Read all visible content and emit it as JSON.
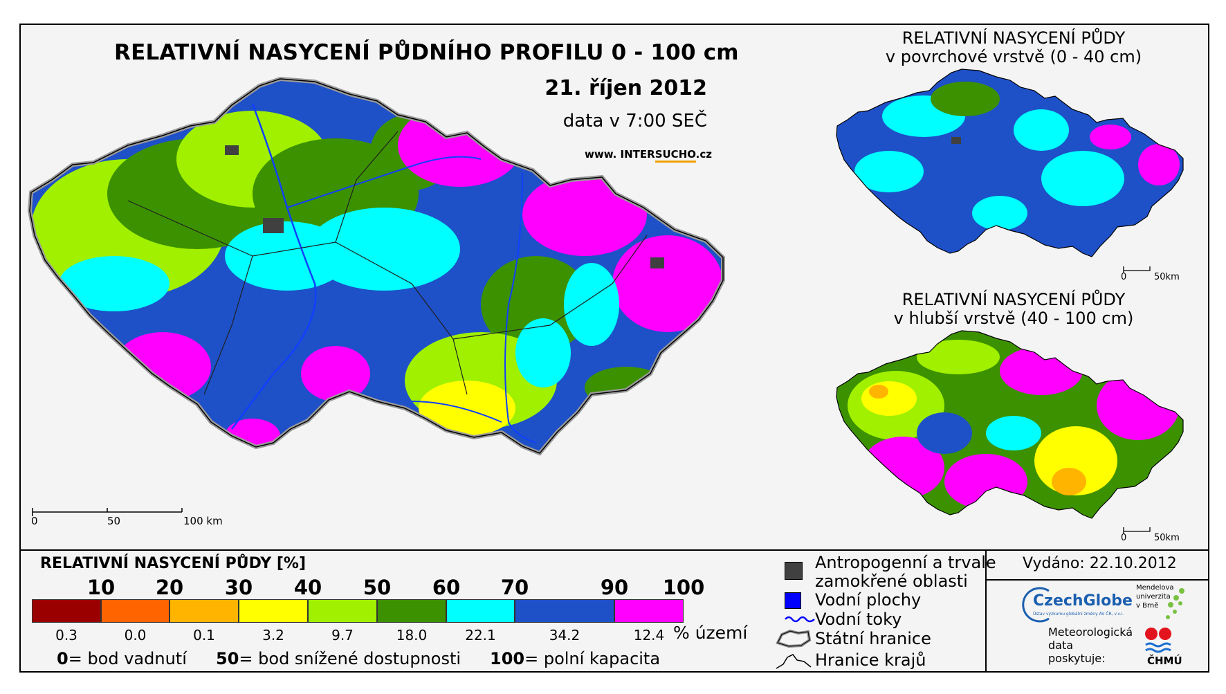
{
  "title": "RELATIVNÍ NASYCENÍ PŮDNÍHO PROFILU 0 - 100 cm",
  "date": "21. říjen 2012",
  "time": "data v 7:00 SEČ",
  "website": {
    "prefix": "www. INTER",
    "accent": "SUCHO",
    "suffix": ".cz"
  },
  "main_map": {
    "scale": {
      "labels": [
        "0",
        "50",
        "100 km"
      ]
    }
  },
  "inset_top": {
    "title_line1": "RELATIVNÍ NASYCENÍ PŮDY",
    "title_line2": "v povrchové vrstvě (0 - 40 cm)",
    "scale": {
      "labels": [
        "0",
        "50km"
      ]
    }
  },
  "inset_bottom": {
    "title_line1": "RELATIVNÍ NASYCENÍ PŮDY",
    "title_line2": "v hlubší vrstvě (40 - 100 cm)",
    "scale": {
      "labels": [
        "0",
        "50km"
      ]
    }
  },
  "legend": {
    "title": "RELATIVNÍ NASYCENÍ PŮDY [%]",
    "thresholds": [
      "10",
      "20",
      "30",
      "40",
      "50",
      "60",
      "70",
      "90",
      "100"
    ],
    "classes": [
      {
        "color": "#9a0000",
        "share": "0.3"
      },
      {
        "color": "#ff6400",
        "share": "0.0"
      },
      {
        "color": "#ffb400",
        "share": "0.1"
      },
      {
        "color": "#ffff00",
        "share": "3.2"
      },
      {
        "color": "#a0f000",
        "share": "9.7"
      },
      {
        "color": "#3c9100",
        "share": "18.0"
      },
      {
        "color": "#00ffff",
        "share": "22.1"
      },
      {
        "color": "#1e50c8",
        "share": "34.2"
      },
      {
        "color": "#ff00ff",
        "share": "12.4"
      }
    ],
    "share_unit": "% území",
    "notes": [
      {
        "value": "0",
        "text": "= bod vadnutí"
      },
      {
        "value": "50",
        "text": "= bod snížené dostupnosti"
      },
      {
        "value": "100",
        "text": "= polní kapacita"
      }
    ]
  },
  "symbols": [
    {
      "icon": "gray-square-icon",
      "color": "#404040",
      "label_line1": "Antropogenní a trvale",
      "label_line2": "zamokřené oblasti"
    },
    {
      "icon": "blue-square-icon",
      "color": "#0000ff",
      "label_line1": "Vodní plochy"
    },
    {
      "icon": "river-line-icon",
      "color": "#0000ff",
      "label_line1": "Vodní toky"
    },
    {
      "icon": "state-border-icon",
      "color": "#000000",
      "label_line1": "Státní hranice"
    },
    {
      "icon": "region-border-icon",
      "color": "#000000",
      "label_line1": "Hranice krajů"
    }
  ],
  "credits": {
    "issued": "Vydáno: 22.10.2012",
    "czechglobe": "CzechGlobe",
    "czechglobe_sub": "Ústav výzkumu globální změny AV ČR, v.v.i.",
    "mendel_line1": "Mendelova",
    "mendel_line2": "univerzita",
    "mendel_line3": "v Brně",
    "met_line1": "Meteorologická",
    "met_line2": "data",
    "met_line3": "poskytuje:",
    "chmu": "ČHMÚ"
  }
}
